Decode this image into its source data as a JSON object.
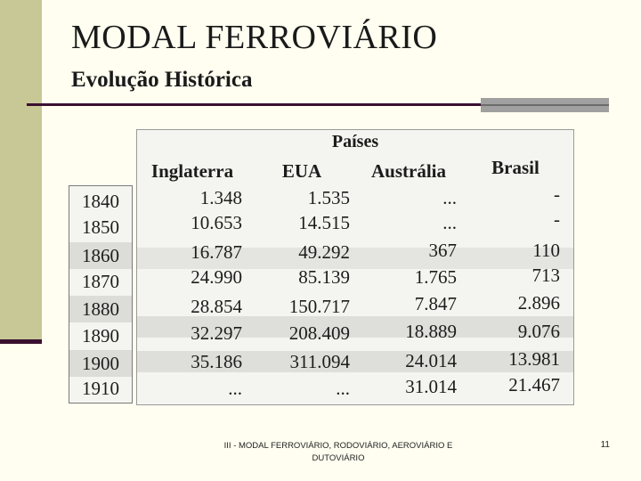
{
  "slide": {
    "title": "MODAL FERROVIÁRIO",
    "subtitle": "Evolução Histórica",
    "footer": "III - MODAL FERROVIÁRIO, RODOVIÁRIO, AEROVIÁRIO E DUTOVIÁRIO",
    "page_number": "11"
  },
  "table": {
    "group_header": "Países",
    "columns": [
      "Inglaterra",
      "EUA",
      "Austrália",
      "Brasil"
    ],
    "years": [
      "1840",
      "1850",
      "1860",
      "1870",
      "1880",
      "1890",
      "1900",
      "1910"
    ],
    "rows": [
      [
        "1.348",
        "1.535",
        "...",
        "-"
      ],
      [
        "10.653",
        "14.515",
        "...",
        "-"
      ],
      [
        "16.787",
        "49.292",
        "367",
        "110"
      ],
      [
        "24.990",
        "85.139",
        "1.765",
        "713"
      ],
      [
        "28.854",
        "150.717",
        "7.847",
        "2.896"
      ],
      [
        "32.297",
        "208.409",
        "18.889",
        "9.076"
      ],
      [
        "35.186",
        "311.094",
        "24.014",
        "13.981"
      ],
      [
        "...",
        "...",
        "31.014",
        "21.467"
      ]
    ]
  }
}
